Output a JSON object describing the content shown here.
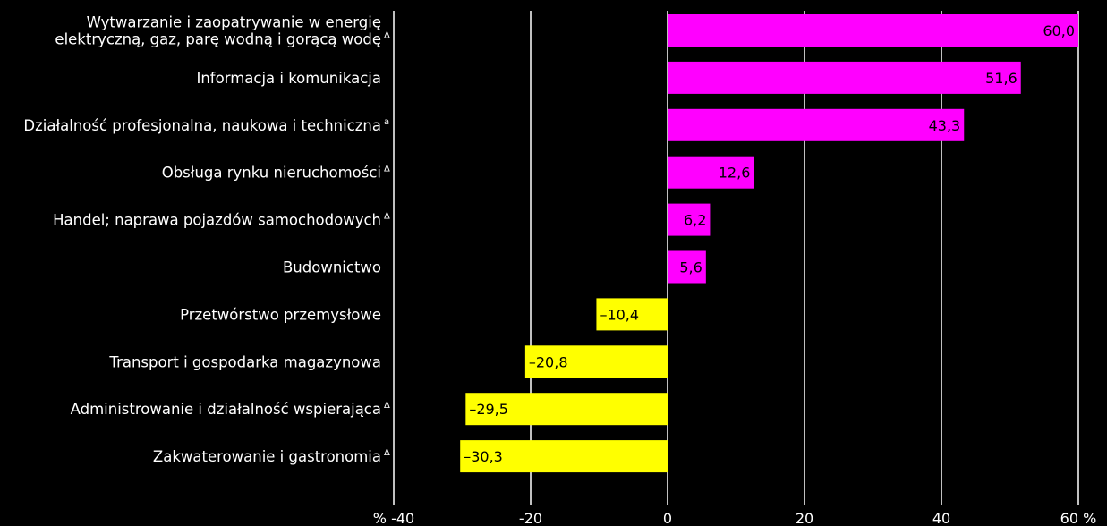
{
  "chart_data": {
    "type": "bar",
    "orientation": "horizontal",
    "categories": [
      [
        "Wytwarzanie i zaopatrywanie w energię",
        "elektryczną, gaz, parę wodną i gorącą wodę"
      ],
      [
        "Informacja i komunikacja"
      ],
      [
        "Działalność profesjonalna, naukowa i techniczna"
      ],
      [
        "Obsługa rynku nieruchomości"
      ],
      [
        "Handel; naprawa pojazdów samochodowych"
      ],
      [
        "Budownictwo"
      ],
      [
        "Przetwórstwo przemysłowe"
      ],
      [
        "Transport i gospodarka magazynowa"
      ],
      [
        "Administrowanie i działalność wspierająca"
      ],
      [
        "Zakwaterowanie i gastronomia"
      ]
    ],
    "superscripts": [
      "Δ",
      "",
      "a",
      "Δ",
      "Δ",
      "",
      "",
      "",
      "Δ",
      "Δ"
    ],
    "values": [
      60.0,
      51.6,
      43.3,
      12.6,
      6.2,
      5.6,
      -10.4,
      -20.8,
      -29.5,
      -30.3
    ],
    "value_labels": [
      "60,0",
      "51,6",
      "43,3",
      "12,6",
      "6,2",
      "5,6",
      "–10,4",
      "–20,8",
      "–29,5",
      "–30,3"
    ],
    "xlim": [
      -40,
      60
    ],
    "xticks": [
      -40,
      -20,
      0,
      20,
      40,
      60
    ],
    "xtick_labels": [
      "% -40",
      "-20",
      "0",
      "20",
      "40",
      "60 %"
    ],
    "grid": true,
    "colors": {
      "background": "#000000",
      "positive": "#ff00ff",
      "negative": "#ffff00",
      "grid": "#ffffff",
      "text": "#ffffff",
      "bar_label": "#000000"
    }
  }
}
